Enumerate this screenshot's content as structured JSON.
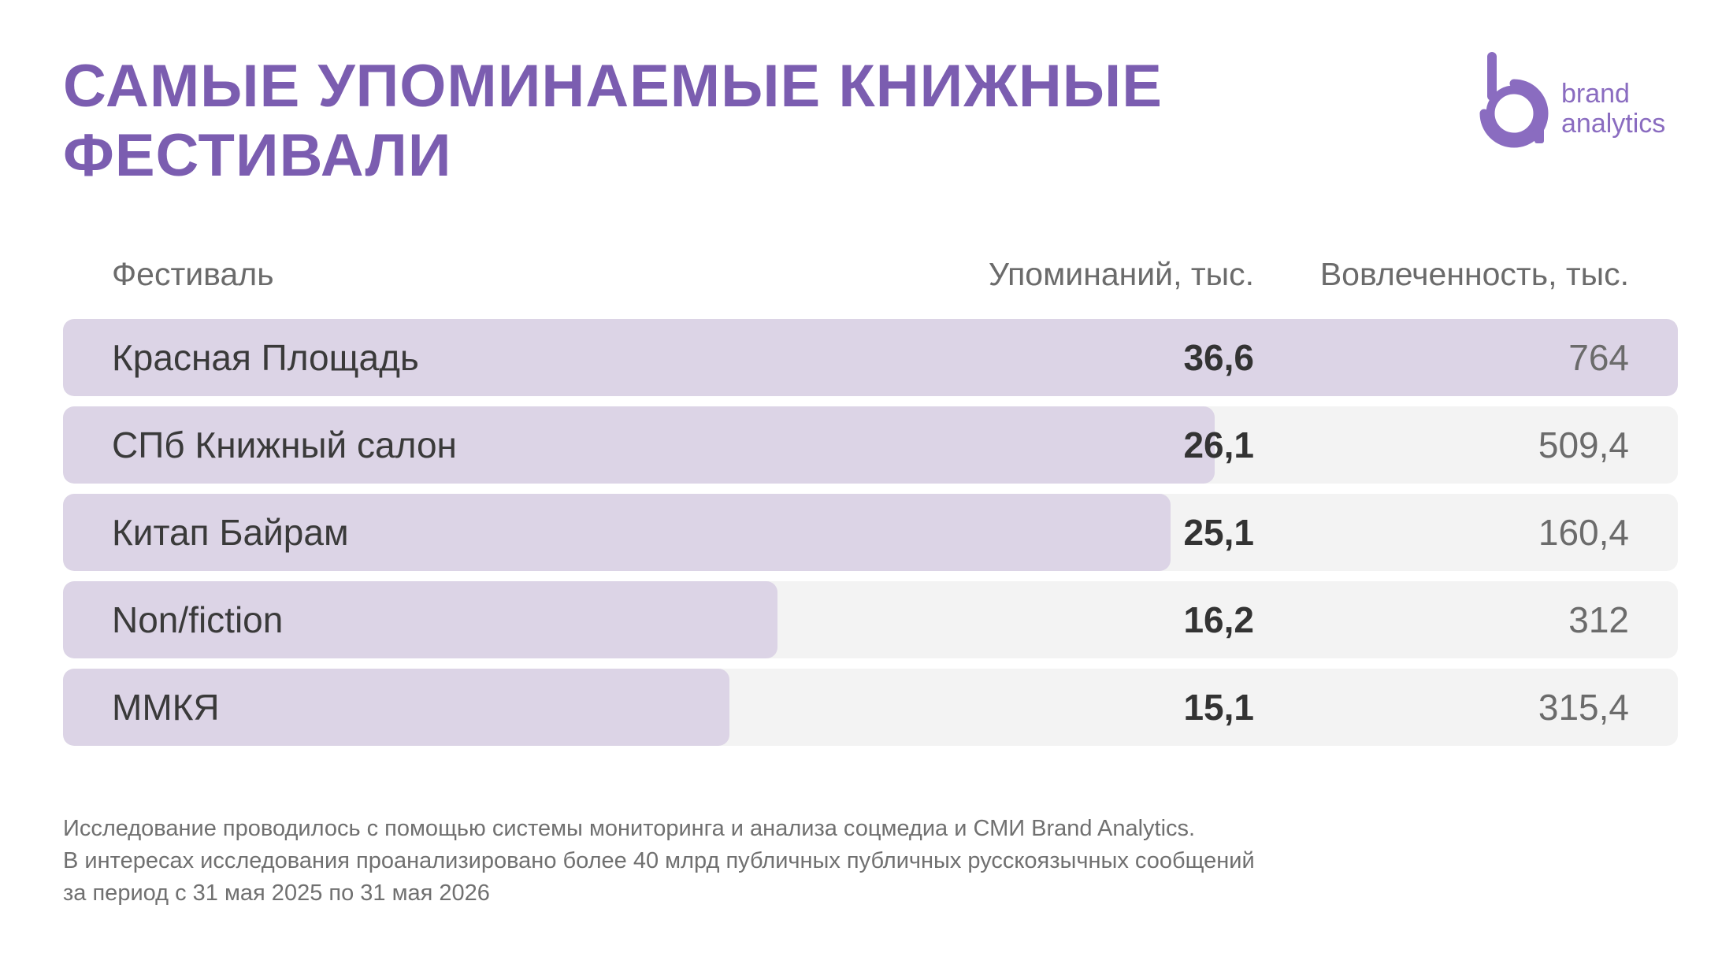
{
  "title": {
    "line1": "САМЫЕ УПОМИНАЕМЫЕ КНИЖНЫЕ",
    "line2": "ФЕСТИВАЛИ"
  },
  "logo": {
    "line1": "brand",
    "line2": "analytics",
    "color": "#8a6cc0"
  },
  "colors": {
    "title": "#7b5db0",
    "bar": "#dcd4e6",
    "row_bg": "#f3f3f3"
  },
  "chart_data": {
    "type": "bar",
    "orientation": "horizontal",
    "columns": [
      "Фестиваль",
      "Упоминаний, тыс.",
      "Вовлеченность, тыс."
    ],
    "categories": [
      "Красная Площадь",
      "СПб Книжный салон",
      "Китап Байрам",
      "Non/fiction",
      "ММКЯ"
    ],
    "series": [
      {
        "name": "Упоминаний, тыс.",
        "values": [
          36.6,
          26.1,
          25.1,
          16.2,
          15.1
        ],
        "labels": [
          "36,6",
          "26,1",
          "25,1",
          "16,2",
          "15,1"
        ]
      },
      {
        "name": "Вовлеченность, тыс.",
        "values": [
          764,
          509.4,
          160.4,
          312,
          315.4
        ],
        "labels": [
          "764",
          "509,4",
          "160,4",
          "312",
          "315,4"
        ]
      }
    ],
    "bar_series": "Упоминаний, тыс."
  },
  "footnote": {
    "line1": "Исследование проводилось с помощью системы мониторинга и анализа соцмедиа и СМИ Brand Analytics.",
    "line2": "В интересах исследования проанализировано более 40 млрд публичных публичных русскоязычных сообщений",
    "line3": "за период с 31 мая 2025 по 31 мая 2026"
  }
}
